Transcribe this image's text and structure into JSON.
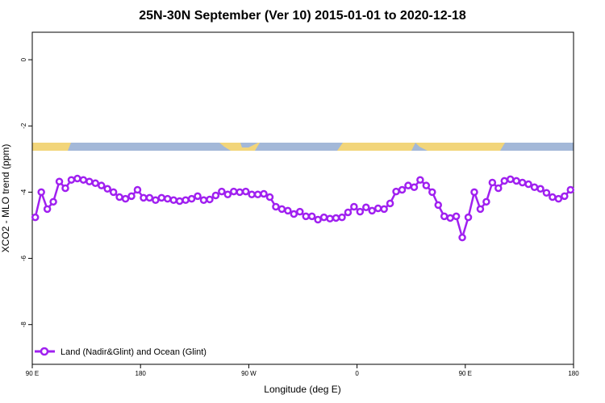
{
  "chart_data": {
    "type": "line",
    "title": "25N-30N September (Ver 10)   2015-01-01 to 2020-12-18",
    "xlabel": "Longitude (deg E)",
    "ylabel": "XCO2 - MLO trend (ppm)",
    "xlim": [
      90,
      540
    ],
    "ylim": [
      -9.2,
      0.83
    ],
    "xticks": [
      {
        "value": 90,
        "label": "90 E"
      },
      {
        "value": 180,
        "label": "180"
      },
      {
        "value": 270,
        "label": "90 W"
      },
      {
        "value": 360,
        "label": "0"
      },
      {
        "value": 450,
        "label": "90 E"
      },
      {
        "value": 540,
        "label": "180"
      }
    ],
    "yticks": [
      0,
      -2,
      -4,
      -6,
      -8
    ],
    "legend": "bottom-left",
    "x": [
      92.5,
      97.5,
      102.5,
      107.5,
      112.5,
      117.5,
      122.5,
      127.5,
      132.5,
      137.5,
      142.5,
      147.5,
      152.5,
      157.5,
      162.5,
      167.5,
      172.5,
      177.5,
      182.5,
      187.5,
      192.5,
      197.5,
      202.5,
      207.5,
      212.5,
      217.5,
      222.5,
      227.5,
      232.5,
      237.5,
      242.5,
      247.5,
      252.5,
      257.5,
      262.5,
      267.5,
      272.5,
      277.5,
      282.5,
      287.5,
      292.5,
      297.5,
      302.5,
      307.5,
      312.5,
      317.5,
      322.5,
      327.5,
      332.5,
      337.5,
      342.5,
      347.5,
      352.5,
      357.5,
      362.5,
      367.5,
      372.5,
      377.5,
      382.5,
      387.5,
      392.5,
      397.5,
      402.5,
      407.5,
      412.5,
      417.5,
      422.5,
      427.5,
      432.5,
      437.5,
      442.5,
      447.5,
      452.5,
      457.5,
      462.5,
      467.5,
      472.5,
      477.5,
      482.5,
      487.5,
      492.5,
      497.5,
      502.5,
      507.5,
      512.5,
      517.5,
      522.5,
      527.5,
      532.5,
      537.5
    ],
    "series": [
      {
        "name": "Land (Nadir&Glint) and Ocean (Glint)",
        "color": "#a020f0",
        "values": [
          -4.76,
          -4.0,
          -4.51,
          -4.29,
          -3.68,
          -3.88,
          -3.63,
          -3.59,
          -3.63,
          -3.68,
          -3.73,
          -3.8,
          -3.9,
          -4.0,
          -4.15,
          -4.2,
          -4.12,
          -3.93,
          -4.17,
          -4.17,
          -4.24,
          -4.17,
          -4.2,
          -4.24,
          -4.27,
          -4.24,
          -4.2,
          -4.12,
          -4.24,
          -4.22,
          -4.1,
          -3.98,
          -4.07,
          -3.98,
          -4.0,
          -3.98,
          -4.07,
          -4.07,
          -4.05,
          -4.15,
          -4.44,
          -4.51,
          -4.56,
          -4.66,
          -4.59,
          -4.73,
          -4.73,
          -4.83,
          -4.76,
          -4.8,
          -4.78,
          -4.76,
          -4.61,
          -4.44,
          -4.59,
          -4.46,
          -4.56,
          -4.49,
          -4.51,
          -4.34,
          -3.98,
          -3.93,
          -3.8,
          -3.85,
          -3.63,
          -3.8,
          -4.0,
          -4.39,
          -4.73,
          -4.78,
          -4.73,
          -5.37,
          -4.76,
          -4.0,
          -4.51,
          -4.29,
          -3.71,
          -3.88,
          -3.66,
          -3.61,
          -3.66,
          -3.71,
          -3.76,
          -3.85,
          -3.9,
          -4.02,
          -4.15,
          -4.2,
          -4.12,
          -3.93
        ]
      }
    ]
  }
}
